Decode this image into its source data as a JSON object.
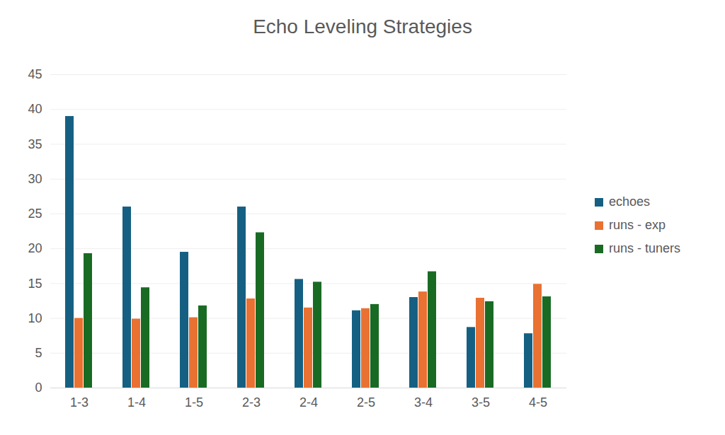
{
  "chart_data": {
    "type": "bar",
    "title": "Echo Leveling Strategies",
    "categories": [
      "1-3",
      "1-4",
      "1-5",
      "2-3",
      "2-4",
      "2-5",
      "3-4",
      "3-5",
      "4-5"
    ],
    "series": [
      {
        "name": "echoes",
        "color": "#156082",
        "values": [
          39,
          26,
          19.5,
          26,
          15.6,
          11.1,
          13,
          8.7,
          7.8
        ]
      },
      {
        "name": "runs - exp",
        "color": "#E97132",
        "values": [
          10,
          9.9,
          10.1,
          12.8,
          11.5,
          11.4,
          13.8,
          12.9,
          14.9
        ]
      },
      {
        "name": "runs - tuners",
        "color": "#196B24",
        "values": [
          19.3,
          14.4,
          11.8,
          22.3,
          15.2,
          12,
          16.7,
          12.4,
          13.1
        ]
      }
    ],
    "ylim": [
      0,
      45
    ],
    "yticks": [
      0,
      5,
      10,
      15,
      20,
      25,
      30,
      35,
      40,
      45
    ],
    "grid": true,
    "legend": "right"
  }
}
